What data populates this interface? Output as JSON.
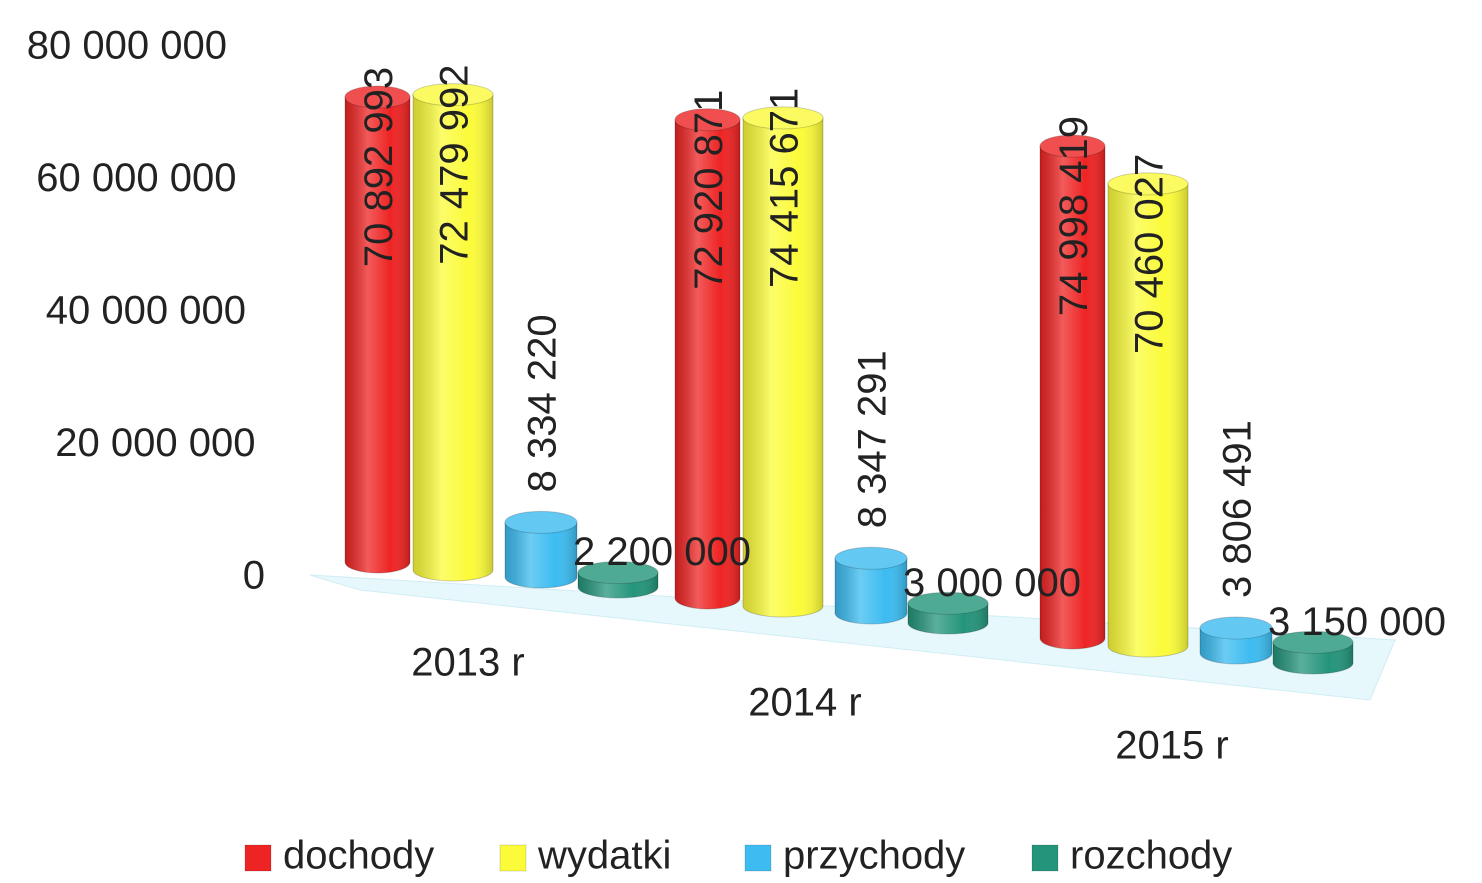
{
  "chart_data": {
    "type": "bar3d",
    "categories": [
      "2013 r",
      "2014 r",
      "2015 r"
    ],
    "series": [
      {
        "name": "dochody",
        "color": "#ee2424",
        "values": [
          70892993,
          72920871,
          74998419
        ],
        "value_labels": [
          "70 892 993",
          "72 920 871",
          "74 998 419"
        ]
      },
      {
        "name": "wydatki",
        "color": "#fbfb3a",
        "values": [
          72479992,
          74415671,
          70460027
        ],
        "value_labels": [
          "72 479 992",
          "74 415 671",
          "70 460 027"
        ]
      },
      {
        "name": "przychody",
        "color": "#3cbcf0",
        "values": [
          8334220,
          8347291,
          3806491
        ],
        "value_labels": [
          "8 334 220",
          "8 347 291",
          "3 806 491"
        ]
      },
      {
        "name": "rozchody",
        "color": "#24957a",
        "values": [
          2200000,
          3000000,
          3150000
        ],
        "value_labels": [
          "2 200 000",
          "3 000 000",
          "3 150 000"
        ]
      }
    ],
    "ylim": [
      0,
      80000000
    ],
    "yticks": [
      0,
      {
        "value": 20000000,
        "label": "20 000 000"
      },
      {
        "value": 40000000,
        "label": "40 000 000"
      },
      {
        "value": 60000000,
        "label": "60 000 000"
      },
      {
        "value": 80000000,
        "label": "80 000 000"
      }
    ],
    "legend": "bottom"
  }
}
